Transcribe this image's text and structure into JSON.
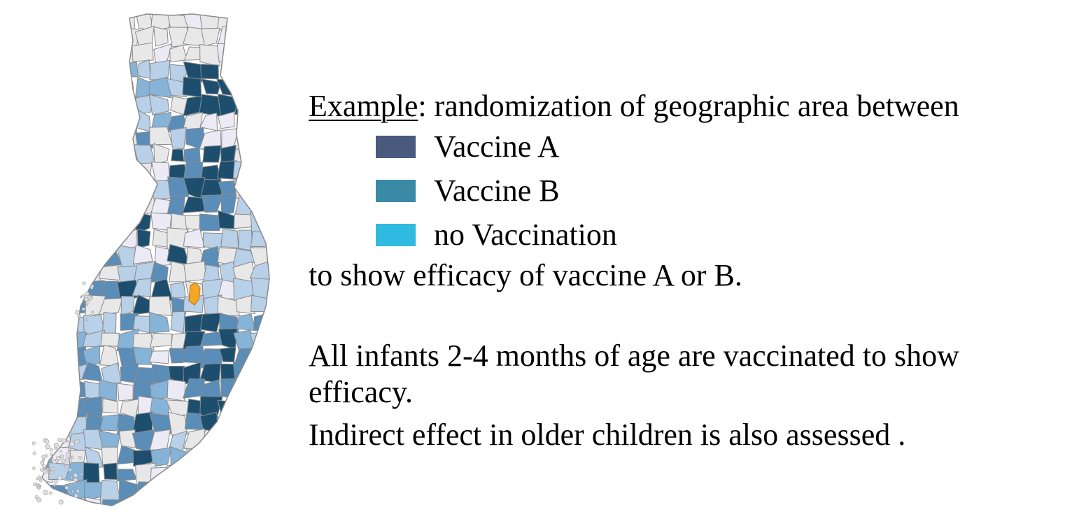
{
  "example_label": "Example",
  "intro_text": ": randomization of geographic area between",
  "legend": [
    {
      "label": "Vaccine A",
      "color": "#4a5a7f"
    },
    {
      "label": "Vaccine B",
      "color": "#3a8aa6"
    },
    {
      "label": "no Vaccination",
      "color": "#2fbbdf"
    }
  ],
  "purpose_text": "to show efficacy of vaccine A or B.",
  "infants_text_line1": "All infants 2-4 months of age are vaccinated to show",
  "infants_text_line2": "efficacy.",
  "indirect_text": "Indirect effect in older children is also assessed .",
  "map_colors": {
    "very_light": "#eceaf4",
    "light_gray": "#e8e8e8",
    "light_blue": "#b8d0e8",
    "mid_blue": "#86b3d8",
    "blue": "#5a8db8",
    "dark_blue": "#1d4e6e",
    "highlight_orange": "#f5a623",
    "border": "#8a8a8a"
  }
}
